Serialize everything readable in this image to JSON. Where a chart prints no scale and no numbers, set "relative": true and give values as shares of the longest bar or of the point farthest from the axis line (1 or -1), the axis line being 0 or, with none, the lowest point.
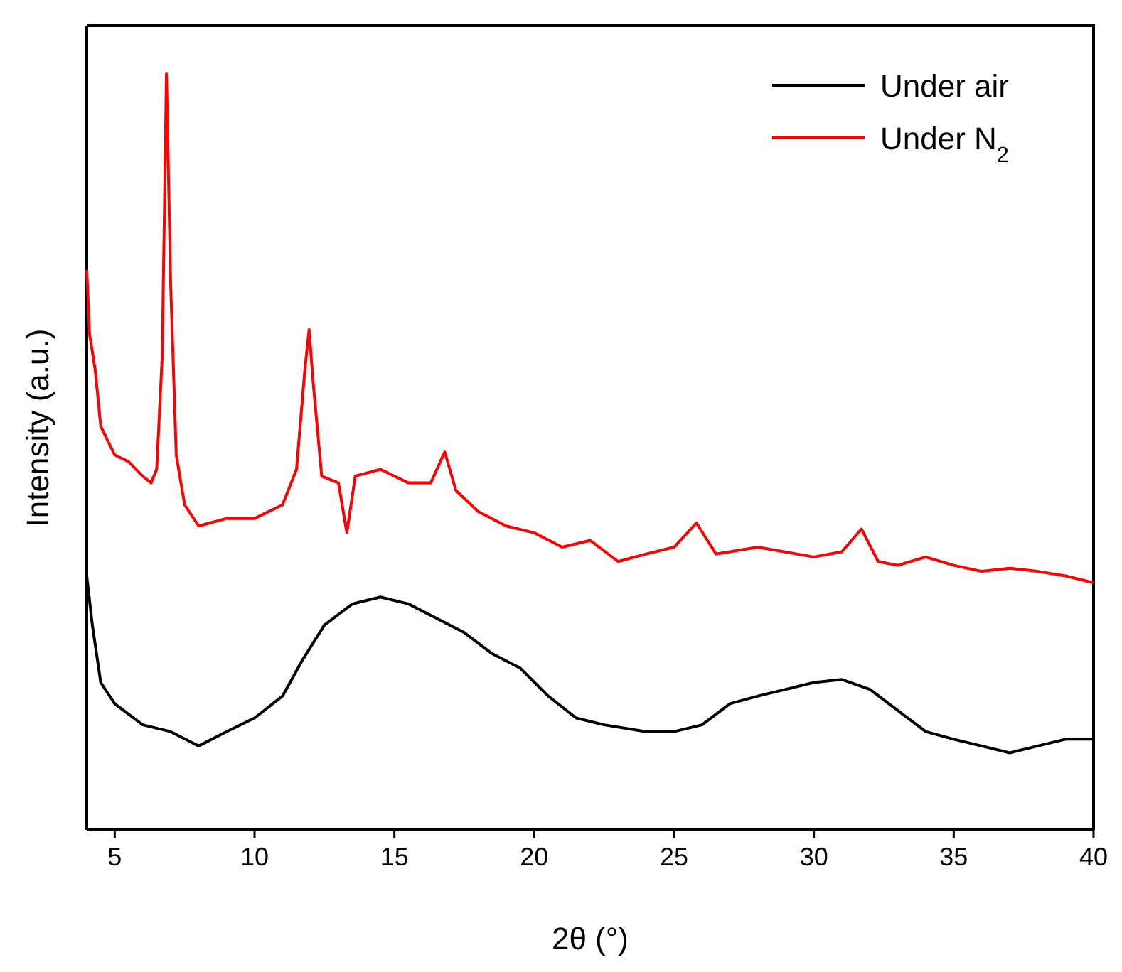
{
  "chart_data": {
    "type": "line",
    "relative": true,
    "xlabel": "2θ (°)",
    "ylabel": "Intensity (a.u.)",
    "xlim": [
      4,
      40
    ],
    "xticks": [
      5,
      10,
      15,
      20,
      25,
      30,
      35,
      40
    ],
    "legend": "top right",
    "grid": false,
    "series": [
      {
        "name": "Under air",
        "color": "#000000",
        "x": [
          4.0,
          4.2,
          4.5,
          5,
          6,
          7,
          8,
          9,
          10,
          11,
          11.7,
          12.5,
          13.5,
          14.5,
          15.5,
          16.5,
          17.5,
          18.5,
          19.5,
          20.5,
          21.5,
          22.5,
          24,
          25,
          26,
          27,
          28,
          29,
          30,
          31,
          32,
          33,
          34,
          35,
          36,
          37,
          38,
          39,
          40
        ],
        "values": [
          0.336,
          0.271,
          0.195,
          0.167,
          0.139,
          0.13,
          0.111,
          0.13,
          0.148,
          0.177,
          0.224,
          0.271,
          0.299,
          0.308,
          0.299,
          0.28,
          0.261,
          0.233,
          0.214,
          0.177,
          0.148,
          0.139,
          0.13,
          0.13,
          0.139,
          0.167,
          0.177,
          0.186,
          0.195,
          0.199,
          0.186,
          0.158,
          0.13,
          0.12,
          0.111,
          0.102,
          0.111,
          0.12,
          0.12
        ]
      },
      {
        "name": "Under N$_{2}$",
        "color": "#ff0000",
        "x": [
          4.0,
          4.1,
          4.3,
          4.5,
          5,
          5.5,
          6,
          6.3,
          6.5,
          6.7,
          6.85,
          7.0,
          7.2,
          7.5,
          8,
          9,
          10,
          11,
          11.5,
          11.8,
          11.95,
          12.1,
          12.4,
          13,
          13.3,
          13.6,
          14.5,
          15.5,
          16.3,
          16.8,
          17.2,
          18,
          19,
          20,
          21,
          22,
          23,
          24,
          25,
          25.8,
          26.5,
          28,
          30,
          31,
          31.7,
          32.3,
          33,
          34,
          35,
          36,
          37,
          38,
          39,
          40
        ],
        "values": [
          0.741,
          0.656,
          0.609,
          0.534,
          0.496,
          0.487,
          0.468,
          0.459,
          0.477,
          0.628,
          1,
          0.722,
          0.496,
          0.43,
          0.402,
          0.412,
          0.412,
          0.43,
          0.477,
          0.609,
          0.662,
          0.59,
          0.468,
          0.459,
          0.393,
          0.468,
          0.477,
          0.459,
          0.459,
          0.5,
          0.449,
          0.421,
          0.402,
          0.393,
          0.374,
          0.383,
          0.355,
          0.365,
          0.374,
          0.406,
          0.365,
          0.374,
          0.361,
          0.368,
          0.398,
          0.355,
          0.35,
          0.361,
          0.35,
          0.342,
          0.346,
          0.342,
          0.336,
          0.327
        ]
      }
    ]
  }
}
